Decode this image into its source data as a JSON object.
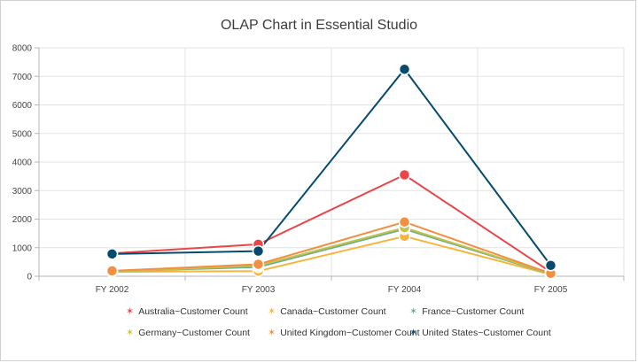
{
  "chart_data": {
    "type": "line",
    "title": "OLAP Chart in Essential Studio",
    "xlabel": "",
    "ylabel": "",
    "categories": [
      "FY 2002",
      "FY 2003",
      "FY 2004",
      "FY 2005"
    ],
    "ylim": [
      0,
      8000
    ],
    "yticks": [
      0,
      1000,
      2000,
      3000,
      4000,
      5000,
      6000,
      7000,
      8000
    ],
    "grid": true,
    "legend_position": "bottom",
    "series": [
      {
        "name": "Australia~Customer Count",
        "color": "#e94649",
        "values": [
          800,
          1120,
          3550,
          150
        ]
      },
      {
        "name": "Canada~Customer Count",
        "color": "#f6b53f",
        "values": [
          150,
          180,
          1400,
          60
        ]
      },
      {
        "name": "France~Customer Count",
        "color": "#6fab8e",
        "values": [
          170,
          320,
          1650,
          80
        ]
      },
      {
        "name": "Germany~Customer Count",
        "color": "#c2c44a",
        "values": [
          160,
          370,
          1700,
          90
        ]
      },
      {
        "name": "United Kingdom~Customer Count",
        "color": "#f28f43",
        "values": [
          190,
          420,
          1900,
          100
        ]
      },
      {
        "name": "United States~Customer Count",
        "color": "#064b6e",
        "values": [
          780,
          880,
          7250,
          380
        ]
      }
    ]
  }
}
